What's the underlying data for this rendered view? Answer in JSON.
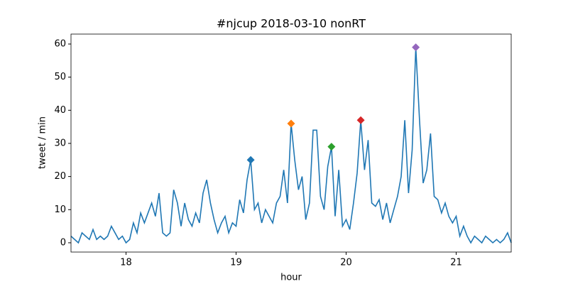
{
  "chart_data": {
    "type": "line",
    "title": "#njcup 2018-03-10 nonRT",
    "xlabel": "hour",
    "ylabel": "tweet / min",
    "x": [
      17.5,
      17.533,
      17.567,
      17.6,
      17.633,
      17.667,
      17.7,
      17.733,
      17.767,
      17.8,
      17.833,
      17.867,
      17.9,
      17.933,
      17.967,
      18,
      18.033,
      18.067,
      18.1,
      18.133,
      18.167,
      18.2,
      18.233,
      18.267,
      18.3,
      18.333,
      18.367,
      18.4,
      18.433,
      18.467,
      18.5,
      18.533,
      18.567,
      18.6,
      18.633,
      18.667,
      18.7,
      18.733,
      18.767,
      18.8,
      18.833,
      18.867,
      18.9,
      18.933,
      18.967,
      19,
      19.033,
      19.067,
      19.1,
      19.133,
      19.167,
      19.2,
      19.233,
      19.267,
      19.3,
      19.333,
      19.367,
      19.4,
      19.433,
      19.467,
      19.5,
      19.533,
      19.567,
      19.6,
      19.633,
      19.667,
      19.7,
      19.733,
      19.767,
      19.8,
      19.833,
      19.867,
      19.9,
      19.933,
      19.967,
      20,
      20.033,
      20.067,
      20.1,
      20.133,
      20.167,
      20.2,
      20.233,
      20.267,
      20.3,
      20.333,
      20.367,
      20.4,
      20.433,
      20.467,
      20.5,
      20.533,
      20.567,
      20.6,
      20.633,
      20.667,
      20.7,
      20.733,
      20.767,
      20.8,
      20.833,
      20.867,
      20.9,
      20.933,
      20.967,
      21,
      21.033,
      21.067,
      21.1,
      21.133,
      21.167,
      21.2,
      21.233,
      21.267,
      21.3,
      21.333,
      21.367,
      21.4,
      21.433,
      21.467,
      21.5
    ],
    "values": [
      2,
      1,
      0,
      3,
      2,
      1,
      4,
      1,
      2,
      1,
      2,
      5,
      3,
      1,
      2,
      0,
      1,
      6,
      3,
      9,
      6,
      9,
      12,
      8,
      15,
      3,
      2,
      3,
      16,
      12,
      5,
      12,
      7,
      5,
      9,
      6,
      15,
      19,
      12,
      7,
      3,
      6,
      8,
      3,
      6,
      5,
      13,
      9,
      19,
      25,
      10,
      12,
      6,
      10,
      8,
      6,
      12,
      14,
      22,
      12,
      36,
      25,
      16,
      20,
      7,
      12,
      34,
      34,
      14,
      10,
      23,
      29,
      8,
      22,
      5,
      7,
      4,
      12,
      21,
      37,
      22,
      31,
      12,
      11,
      13,
      7,
      12,
      6,
      10,
      14,
      20,
      37,
      15,
      28,
      59,
      37,
      18,
      22,
      33,
      14,
      13,
      9,
      12,
      8,
      6,
      8,
      2,
      5,
      2,
      0,
      2,
      1,
      0,
      2,
      1,
      0,
      1,
      0,
      1,
      3,
      0
    ],
    "color": "#1f77b4",
    "highlights": [
      {
        "x": 19.133,
        "y": 25,
        "color": "#1f77b4"
      },
      {
        "x": 19.5,
        "y": 36,
        "color": "#ff7f0e"
      },
      {
        "x": 19.867,
        "y": 29,
        "color": "#2ca02c"
      },
      {
        "x": 20.133,
        "y": 37,
        "color": "#d62728"
      },
      {
        "x": 20.633,
        "y": 59,
        "color": "#9467bd"
      }
    ],
    "xlim": [
      17.5,
      21.5
    ],
    "ylim": [
      -2.8,
      63
    ],
    "xticks": [
      18,
      19,
      20,
      21
    ],
    "yticks": [
      0,
      10,
      20,
      30,
      40,
      50,
      60
    ]
  }
}
